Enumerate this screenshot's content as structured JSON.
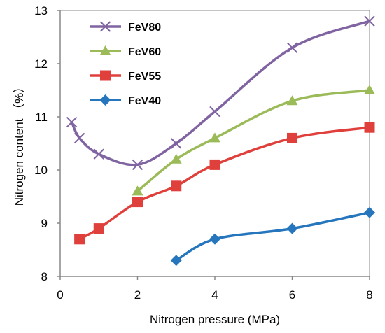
{
  "chart_data": {
    "type": "line",
    "xlabel": "Nitrogen pressure (MPa)",
    "ylabel": "Nitrogen content （%）",
    "xlim": [
      0,
      8
    ],
    "ylim": [
      8,
      13
    ],
    "xticks": [
      0,
      2,
      4,
      6,
      8
    ],
    "yticks": [
      8,
      9,
      10,
      11,
      12,
      13
    ],
    "grid": false,
    "legend_position": "top-left",
    "series": [
      {
        "name": "FeV80",
        "color": "#8064a2",
        "marker": "x",
        "x": [
          0.3,
          0.5,
          1,
          2,
          3,
          4,
          6,
          8
        ],
        "y": [
          10.9,
          10.6,
          10.3,
          10.1,
          10.5,
          11.1,
          12.3,
          12.8
        ]
      },
      {
        "name": "FeV60",
        "color": "#9bbb59",
        "marker": "triangle",
        "x": [
          2,
          3,
          4,
          6,
          8
        ],
        "y": [
          9.6,
          10.2,
          10.6,
          11.3,
          11.5
        ]
      },
      {
        "name": "FeV55",
        "color": "#e0403c",
        "marker": "square",
        "x": [
          0.5,
          1,
          2,
          3,
          4,
          6,
          8
        ],
        "y": [
          8.7,
          8.9,
          9.4,
          9.7,
          10.1,
          10.6,
          10.8
        ]
      },
      {
        "name": "FeV40",
        "color": "#2576bd",
        "marker": "diamond",
        "x": [
          3,
          4,
          6,
          8
        ],
        "y": [
          8.3,
          8.7,
          8.9,
          9.2
        ]
      }
    ]
  }
}
